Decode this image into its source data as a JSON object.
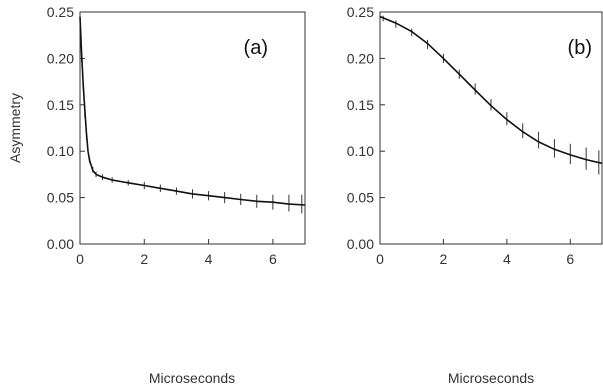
{
  "chart_data": [
    {
      "type": "line",
      "panel_label": "(a)",
      "xlabel": "Microseconds",
      "ylabel": "Asymmetry",
      "xlim": [
        0,
        7
      ],
      "ylim": [
        0,
        0.25
      ],
      "x_ticks": [
        "0",
        "2",
        "4",
        "6"
      ],
      "y_ticks": [
        "0.00",
        "0.05",
        "0.10",
        "0.15",
        "0.20",
        "0.25"
      ],
      "grid": false,
      "series": [
        {
          "kind": "data_with_error_bars",
          "x": [
            0.0,
            0.05,
            0.1,
            0.15,
            0.2,
            0.3,
            0.4,
            0.5,
            0.7,
            1.0,
            1.5,
            2.0,
            2.5,
            3.0,
            3.5,
            4.0,
            4.5,
            5.0,
            5.5,
            6.0,
            6.5,
            6.9
          ],
          "y": [
            0.24,
            0.2,
            0.17,
            0.14,
            0.115,
            0.09,
            0.08,
            0.075,
            0.072,
            0.069,
            0.066,
            0.063,
            0.06,
            0.057,
            0.054,
            0.052,
            0.05,
            0.048,
            0.046,
            0.045,
            0.044,
            0.043
          ],
          "err": [
            0.005,
            0.004,
            0.004,
            0.004,
            0.003,
            0.003,
            0.003,
            0.003,
            0.003,
            0.003,
            0.003,
            0.004,
            0.004,
            0.004,
            0.005,
            0.005,
            0.006,
            0.006,
            0.007,
            0.008,
            0.009,
            0.01
          ]
        },
        {
          "kind": "fit",
          "x": [
            0.0,
            0.05,
            0.1,
            0.15,
            0.2,
            0.25,
            0.3,
            0.4,
            0.5,
            0.7,
            1.0,
            1.5,
            2.0,
            2.5,
            3.0,
            3.5,
            4.0,
            4.5,
            5.0,
            5.5,
            6.0,
            6.5,
            7.0
          ],
          "y": [
            0.245,
            0.205,
            0.172,
            0.145,
            0.12,
            0.1,
            0.09,
            0.079,
            0.075,
            0.072,
            0.069,
            0.066,
            0.063,
            0.06,
            0.057,
            0.054,
            0.052,
            0.05,
            0.048,
            0.046,
            0.045,
            0.043,
            0.042
          ]
        }
      ]
    },
    {
      "type": "line",
      "panel_label": "(b)",
      "xlabel": "Microseconds",
      "ylabel": "",
      "xlim": [
        0,
        7
      ],
      "ylim": [
        0,
        0.25
      ],
      "x_ticks": [
        "0",
        "2",
        "4",
        "6"
      ],
      "y_ticks": [
        "0.00",
        "0.05",
        "0.10",
        "0.15",
        "0.20",
        "0.25"
      ],
      "grid": false,
      "series": [
        {
          "kind": "data_with_error_bars",
          "x": [
            0.1,
            0.5,
            1.0,
            1.5,
            2.0,
            2.5,
            3.0,
            3.5,
            4.0,
            4.5,
            5.0,
            5.5,
            6.0,
            6.5,
            6.9
          ],
          "y": [
            0.243,
            0.237,
            0.228,
            0.215,
            0.2,
            0.183,
            0.167,
            0.15,
            0.135,
            0.122,
            0.112,
            0.103,
            0.097,
            0.092,
            0.088
          ],
          "err": [
            0.003,
            0.004,
            0.004,
            0.005,
            0.005,
            0.005,
            0.006,
            0.006,
            0.007,
            0.008,
            0.009,
            0.01,
            0.011,
            0.012,
            0.013
          ]
        },
        {
          "kind": "fit",
          "x": [
            0.0,
            0.5,
            1.0,
            1.5,
            2.0,
            2.5,
            3.0,
            3.5,
            4.0,
            4.5,
            5.0,
            5.5,
            6.0,
            6.5,
            7.0
          ],
          "y": [
            0.245,
            0.238,
            0.229,
            0.216,
            0.2,
            0.183,
            0.166,
            0.149,
            0.134,
            0.121,
            0.11,
            0.102,
            0.096,
            0.091,
            0.087
          ]
        }
      ]
    }
  ]
}
